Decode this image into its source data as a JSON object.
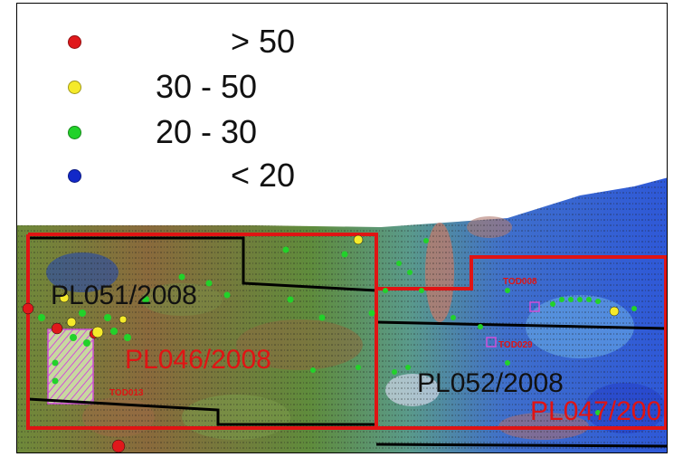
{
  "legend": [
    {
      "label": "> 50",
      "color": "#e0181b"
    },
    {
      "label": "30 - 50",
      "color": "#f5ea2a"
    },
    {
      "label": "20 - 30",
      "color": "#22d22a"
    },
    {
      "label": "< 20",
      "color": "#1228c8"
    }
  ],
  "blocks": {
    "pl051": "PL051/2008",
    "pl046": "PL046/2008",
    "pl052": "PL052/2008",
    "pl047": "PL047/200"
  },
  "wells": {
    "t1": "TOD008",
    "t2": "TOD029",
    "t3": "TOD013"
  },
  "colors": {
    "block_outline": "#e01414",
    "inner_outline": "#000000",
    "label_red": "#e01414",
    "label_black": "#111111"
  }
}
